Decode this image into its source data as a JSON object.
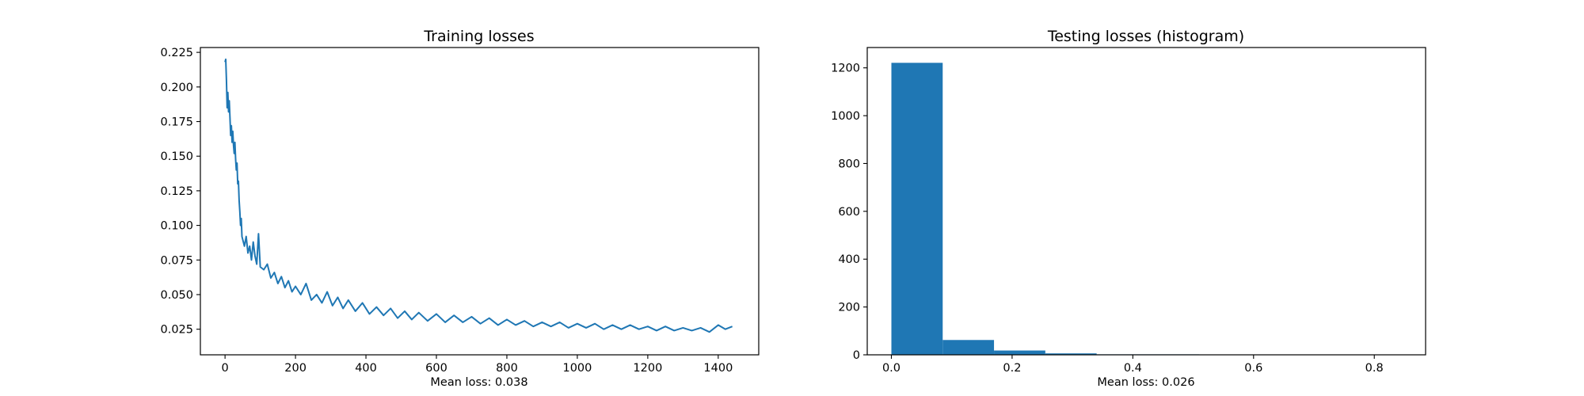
{
  "colors": {
    "series": "#1f77b4",
    "axis": "#000000",
    "background": "#ffffff"
  },
  "chart_data": [
    {
      "type": "line",
      "title": "Training losses",
      "xlabel": "Mean loss: 0.038",
      "ylabel": "",
      "xlim": [
        -70,
        1515
      ],
      "ylim": [
        0.0065,
        0.2285
      ],
      "xticks": [
        0,
        200,
        400,
        600,
        800,
        1000,
        1200,
        1400
      ],
      "xtick_labels": [
        "0",
        "200",
        "400",
        "600",
        "800",
        "1000",
        "1200",
        "1400"
      ],
      "yticks": [
        0.025,
        0.05,
        0.075,
        0.1,
        0.125,
        0.15,
        0.175,
        0.2,
        0.225
      ],
      "ytick_labels": [
        "0.025",
        "0.050",
        "0.075",
        "0.100",
        "0.125",
        "0.150",
        "0.175",
        "0.200",
        "0.225"
      ],
      "grid": false,
      "series": [
        {
          "x": [
            0,
            2,
            4,
            6,
            8,
            10,
            12,
            14,
            16,
            18,
            20,
            22,
            24,
            26,
            28,
            30,
            32,
            34,
            36,
            38,
            40,
            42,
            44,
            46,
            48,
            50,
            55,
            60,
            65,
            70,
            75,
            80,
            85,
            90,
            95,
            100,
            110,
            120,
            130,
            140,
            150,
            160,
            170,
            180,
            190,
            200,
            215,
            230,
            245,
            260,
            275,
            290,
            305,
            320,
            335,
            350,
            370,
            390,
            410,
            430,
            450,
            470,
            490,
            510,
            530,
            550,
            575,
            600,
            625,
            650,
            675,
            700,
            725,
            750,
            775,
            800,
            825,
            850,
            875,
            900,
            925,
            950,
            975,
            1000,
            1025,
            1050,
            1075,
            1100,
            1125,
            1150,
            1175,
            1200,
            1225,
            1250,
            1275,
            1300,
            1325,
            1350,
            1375,
            1400,
            1420,
            1440
          ],
          "values": [
            0.218,
            0.22,
            0.205,
            0.185,
            0.196,
            0.182,
            0.19,
            0.178,
            0.165,
            0.172,
            0.16,
            0.168,
            0.158,
            0.152,
            0.16,
            0.148,
            0.14,
            0.145,
            0.13,
            0.132,
            0.118,
            0.11,
            0.1,
            0.105,
            0.092,
            0.09,
            0.085,
            0.092,
            0.08,
            0.085,
            0.075,
            0.088,
            0.078,
            0.072,
            0.094,
            0.07,
            0.068,
            0.072,
            0.062,
            0.066,
            0.058,
            0.063,
            0.055,
            0.06,
            0.052,
            0.056,
            0.05,
            0.058,
            0.046,
            0.05,
            0.044,
            0.052,
            0.042,
            0.048,
            0.04,
            0.046,
            0.038,
            0.044,
            0.036,
            0.041,
            0.035,
            0.04,
            0.033,
            0.038,
            0.032,
            0.037,
            0.031,
            0.036,
            0.03,
            0.035,
            0.03,
            0.034,
            0.029,
            0.033,
            0.028,
            0.032,
            0.028,
            0.031,
            0.027,
            0.03,
            0.027,
            0.03,
            0.026,
            0.029,
            0.026,
            0.029,
            0.025,
            0.028,
            0.025,
            0.028,
            0.025,
            0.027,
            0.024,
            0.027,
            0.024,
            0.026,
            0.024,
            0.026,
            0.023,
            0.028,
            0.025,
            0.027
          ]
        }
      ]
    },
    {
      "type": "bar",
      "title": "Testing losses (histogram)",
      "xlabel": "Mean loss: 0.026",
      "ylabel": "",
      "xlim": [
        -0.04,
        0.885
      ],
      "ylim": [
        0,
        1285
      ],
      "xticks": [
        0,
        0.2,
        0.4,
        0.6,
        0.8
      ],
      "xtick_labels": [
        "0.0",
        "0.2",
        "0.4",
        "0.6",
        "0.8"
      ],
      "yticks": [
        0,
        200,
        400,
        600,
        800,
        1000,
        1200
      ],
      "ytick_labels": [
        "0",
        "200",
        "400",
        "600",
        "800",
        "1000",
        "1200"
      ],
      "grid": false,
      "bins": [
        {
          "x0": 0.0,
          "x1": 0.085,
          "count": 1221
        },
        {
          "x0": 0.085,
          "x1": 0.17,
          "count": 62
        },
        {
          "x0": 0.17,
          "x1": 0.255,
          "count": 18
        },
        {
          "x0": 0.255,
          "x1": 0.34,
          "count": 6
        },
        {
          "x0": 0.34,
          "x1": 0.425,
          "count": 2
        },
        {
          "x0": 0.425,
          "x1": 0.51,
          "count": 2
        },
        {
          "x0": 0.51,
          "x1": 0.595,
          "count": 0
        },
        {
          "x0": 0.595,
          "x1": 0.68,
          "count": 0
        },
        {
          "x0": 0.68,
          "x1": 0.765,
          "count": 0
        },
        {
          "x0": 0.765,
          "x1": 0.85,
          "count": 1
        }
      ]
    }
  ]
}
